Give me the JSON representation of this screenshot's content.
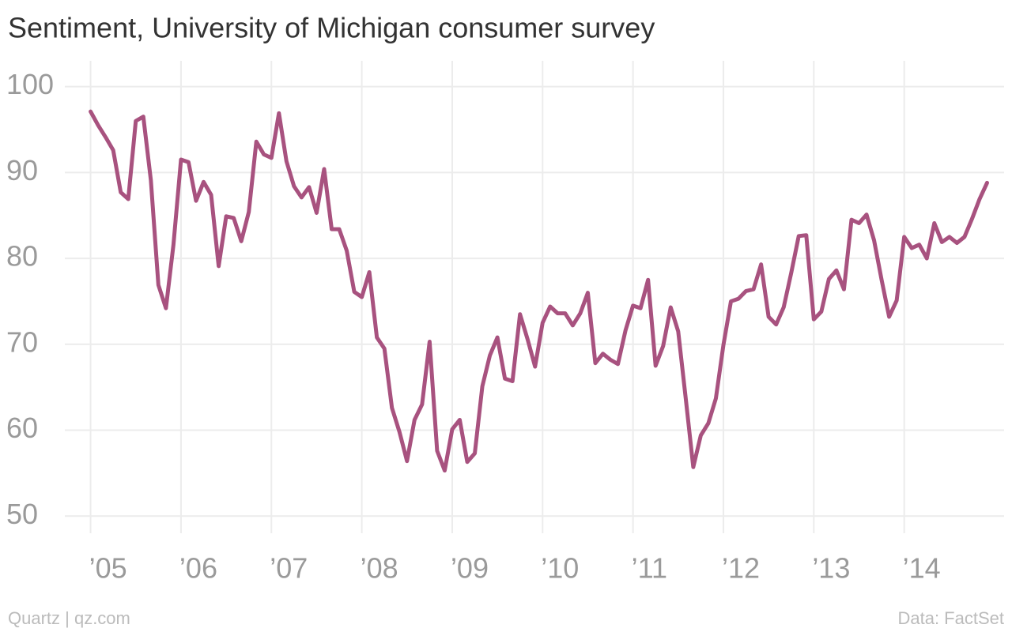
{
  "chart_data": {
    "type": "line",
    "title": "Sentiment, University of Michigan consumer survey",
    "source_left": "Quartz | qz.com",
    "source_right": "Data: FactSet",
    "grid": true,
    "xlim": [
      2004.75,
      2015.0
    ],
    "ylim": [
      48,
      103
    ],
    "yticks": [
      50,
      60,
      70,
      80,
      90,
      100
    ],
    "xticks": [
      {
        "value": 2005,
        "label": "’05"
      },
      {
        "value": 2006,
        "label": "’06"
      },
      {
        "value": 2007,
        "label": "’07"
      },
      {
        "value": 2008,
        "label": "’08"
      },
      {
        "value": 2009,
        "label": "’09"
      },
      {
        "value": 2010,
        "label": "’10"
      },
      {
        "value": 2011,
        "label": "’11"
      },
      {
        "value": 2012,
        "label": "’12"
      },
      {
        "value": 2013,
        "label": "’13"
      },
      {
        "value": 2014,
        "label": "’14"
      }
    ],
    "x": [
      2005.0,
      2005.0833,
      2005.1667,
      2005.25,
      2005.3333,
      2005.4167,
      2005.5,
      2005.5833,
      2005.6667,
      2005.75,
      2005.8333,
      2005.9167,
      2006.0,
      2006.0833,
      2006.1667,
      2006.25,
      2006.3333,
      2006.4167,
      2006.5,
      2006.5833,
      2006.6667,
      2006.75,
      2006.8333,
      2006.9167,
      2007.0,
      2007.0833,
      2007.1667,
      2007.25,
      2007.3333,
      2007.4167,
      2007.5,
      2007.5833,
      2007.6667,
      2007.75,
      2007.8333,
      2007.9167,
      2008.0,
      2008.0833,
      2008.1667,
      2008.25,
      2008.3333,
      2008.4167,
      2008.5,
      2008.5833,
      2008.6667,
      2008.75,
      2008.8333,
      2008.9167,
      2009.0,
      2009.0833,
      2009.1667,
      2009.25,
      2009.3333,
      2009.4167,
      2009.5,
      2009.5833,
      2009.6667,
      2009.75,
      2009.8333,
      2009.9167,
      2010.0,
      2010.0833,
      2010.1667,
      2010.25,
      2010.3333,
      2010.4167,
      2010.5,
      2010.5833,
      2010.6667,
      2010.75,
      2010.8333,
      2010.9167,
      2011.0,
      2011.0833,
      2011.1667,
      2011.25,
      2011.3333,
      2011.4167,
      2011.5,
      2011.5833,
      2011.6667,
      2011.75,
      2011.8333,
      2011.9167,
      2012.0,
      2012.0833,
      2012.1667,
      2012.25,
      2012.3333,
      2012.4167,
      2012.5,
      2012.5833,
      2012.6667,
      2012.75,
      2012.8333,
      2012.9167,
      2013.0,
      2013.0833,
      2013.1667,
      2013.25,
      2013.3333,
      2013.4167,
      2013.5,
      2013.5833,
      2013.6667,
      2013.75,
      2013.8333,
      2013.9167,
      2014.0,
      2014.0833,
      2014.1667,
      2014.25,
      2014.3333,
      2014.4167,
      2014.5,
      2014.5833,
      2014.6667,
      2014.75,
      2014.8333,
      2014.9167
    ],
    "series": [
      {
        "name": "Sentiment",
        "color": "#a8527f",
        "values": [
          97.1,
          95.5,
          94.1,
          92.6,
          87.7,
          86.9,
          96.0,
          96.5,
          89.1,
          76.9,
          74.2,
          81.6,
          91.5,
          91.2,
          86.7,
          88.9,
          87.4,
          79.1,
          84.9,
          84.7,
          82.0,
          85.4,
          93.6,
          92.1,
          91.7,
          96.9,
          91.3,
          88.4,
          87.1,
          88.3,
          85.3,
          90.4,
          83.4,
          83.4,
          80.9,
          76.1,
          75.5,
          78.4,
          70.8,
          69.5,
          62.6,
          59.8,
          56.4,
          61.2,
          63.0,
          70.3,
          57.6,
          55.3,
          60.1,
          61.2,
          56.3,
          57.3,
          65.1,
          68.7,
          70.8,
          66.0,
          65.7,
          73.5,
          70.6,
          67.4,
          72.5,
          74.4,
          73.6,
          73.6,
          72.2,
          73.6,
          76.0,
          67.8,
          68.9,
          68.2,
          67.7,
          71.6,
          74.5,
          74.2,
          77.5,
          67.5,
          69.8,
          74.3,
          71.5,
          63.7,
          55.7,
          59.4,
          60.8,
          63.7,
          69.9,
          75.0,
          75.3,
          76.2,
          76.4,
          79.3,
          73.2,
          72.3,
          74.3,
          78.3,
          82.6,
          82.7,
          72.9,
          73.8,
          77.6,
          78.6,
          76.4,
          84.5,
          84.1,
          85.1,
          82.1,
          77.5,
          73.2,
          75.1,
          82.5,
          81.2,
          81.6,
          80.0,
          84.1,
          81.9,
          82.5,
          81.8,
          82.5,
          84.6,
          86.9,
          88.8
        ]
      }
    ]
  }
}
